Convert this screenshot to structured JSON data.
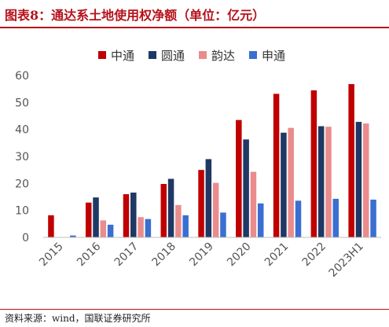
{
  "title": "图表8：通达系土地使用权净额（单位：亿元）",
  "source": "资料来源：wind，国联证券研究所",
  "chart_data": {
    "type": "bar",
    "categories": [
      "2015",
      "2016",
      "2017",
      "2018",
      "2019",
      "2020",
      "2021",
      "2022",
      "2023H1"
    ],
    "series": [
      {
        "name": "中通",
        "color": "#c00000",
        "values": [
          8.2,
          12.9,
          16.0,
          19.8,
          25.0,
          43.5,
          53.2,
          54.5,
          56.8
        ]
      },
      {
        "name": "圆通",
        "color": "#1f3864",
        "values": [
          0,
          14.8,
          16.6,
          21.7,
          29.0,
          36.3,
          38.8,
          41.2,
          42.8
        ]
      },
      {
        "name": "韵达",
        "color": "#ea8c8c",
        "values": [
          0,
          6.3,
          7.5,
          12.0,
          20.2,
          24.3,
          40.6,
          41.0,
          42.2
        ]
      },
      {
        "name": "申通",
        "color": "#3a6fd1",
        "values": [
          0.7,
          4.7,
          6.8,
          8.2,
          9.2,
          12.6,
          13.6,
          14.3,
          14.0
        ]
      }
    ],
    "ylim": [
      0,
      60
    ],
    "yticks": [
      0,
      10,
      20,
      30,
      40,
      50,
      60
    ],
    "legend_position": "top",
    "grid": false
  }
}
